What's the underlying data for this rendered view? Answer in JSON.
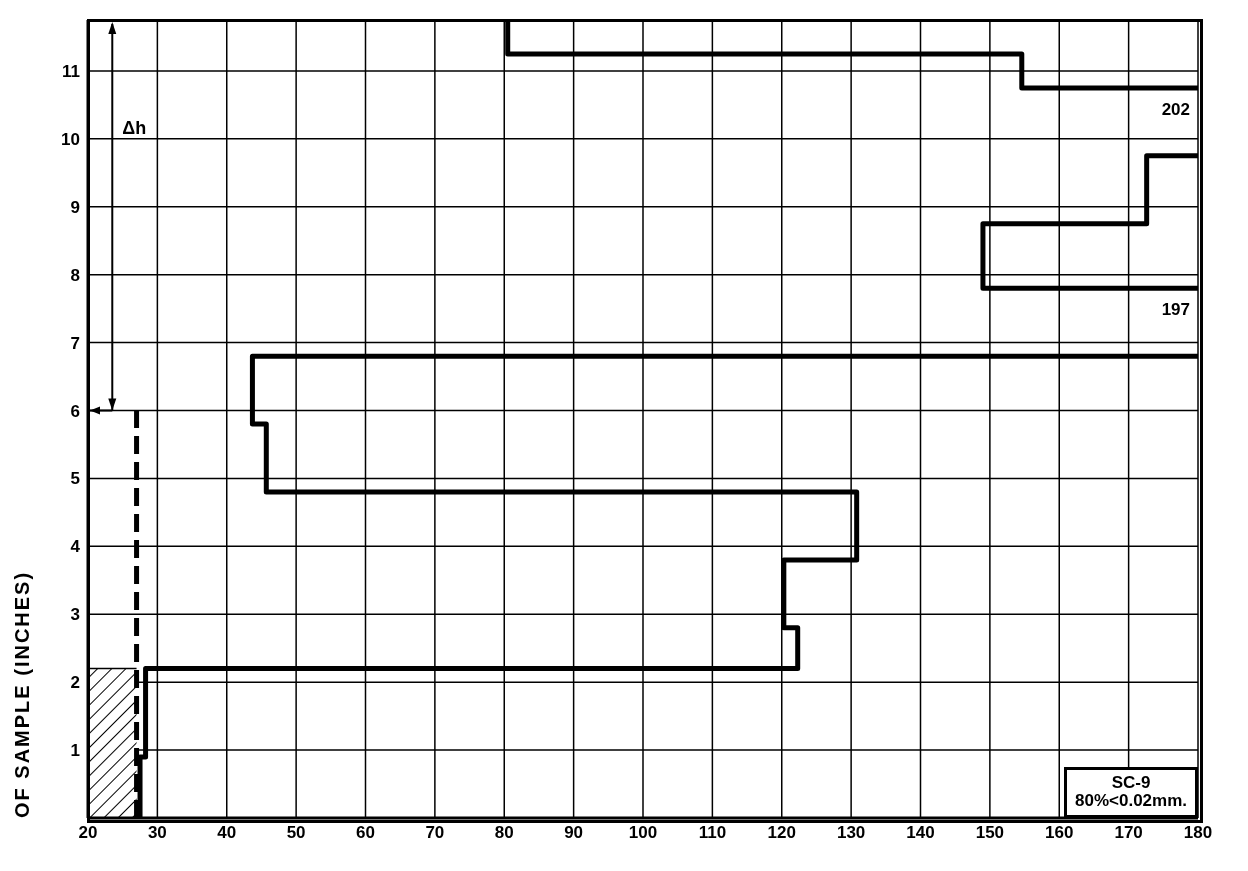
{
  "chart_data": {
    "type": "line",
    "ylabel": "OF SAMPLE (INCHES)",
    "xlim": [
      20,
      180
    ],
    "xticks": [
      20,
      30,
      40,
      50,
      60,
      70,
      80,
      90,
      100,
      110,
      120,
      130,
      140,
      150,
      160,
      170,
      180
    ],
    "ylim": [
      0,
      11.75
    ],
    "yticks": [
      {
        "value": 0,
        "label": null
      },
      1,
      2,
      3,
      4,
      5,
      6,
      7,
      8,
      9,
      10,
      11
    ],
    "grid": true,
    "marker": "none",
    "series": [
      {
        "type": "area",
        "color": "#000000",
        "x": [
          20,
          27
        ],
        "values": [
          2.2,
          2.2
        ]
      },
      {
        "type": "line",
        "color": "#000000",
        "line_style": "dashed",
        "x": [
          27,
          27
        ],
        "values": [
          0,
          6
        ]
      },
      {
        "color": "#000000",
        "x": [
          27.5,
          27.5,
          28.3,
          28.3,
          122.3,
          122.3,
          120.3,
          120.3,
          130.8,
          130.8,
          45.7,
          45.7,
          43.7,
          43.7,
          180
        ],
        "values": [
          0,
          0.9,
          0.9,
          2.2,
          2.2,
          2.8,
          2.8,
          3.8,
          3.8,
          4.8,
          4.8,
          5.8,
          5.8,
          6.8,
          6.8
        ]
      },
      {
        "color": "#000000",
        "x": [
          180,
          149,
          149,
          172.6,
          172.6,
          180
        ],
        "values": [
          7.8,
          7.8,
          8.75,
          8.75,
          9.75,
          9.75
        ]
      },
      {
        "color": "#000000",
        "x": [
          80.5,
          80.5,
          154.6,
          154.6,
          180
        ],
        "values": [
          11.75,
          11.25,
          11.25,
          10.75,
          10.75
        ]
      }
    ],
    "annotations": [
      "Δh",
      {
        "text": "202",
        "x": 180,
        "y": 10.75
      },
      {
        "text": "197",
        "x": 180,
        "y": 7.8
      },
      "SC-9",
      "80%<0.02mm."
    ]
  }
}
